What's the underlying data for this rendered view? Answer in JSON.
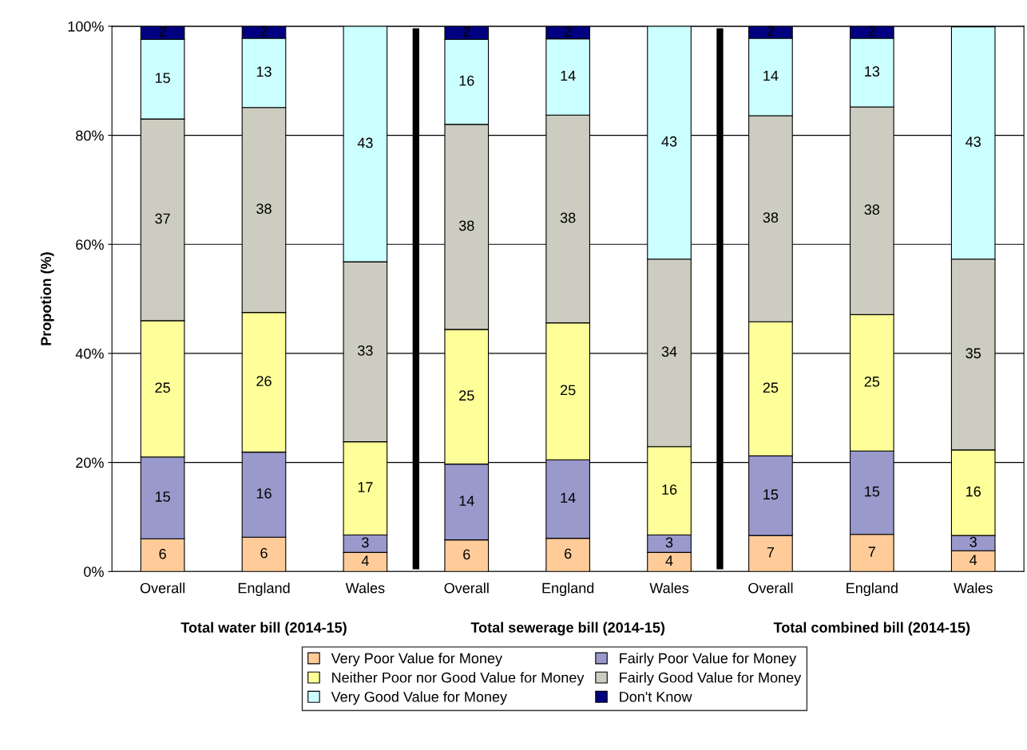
{
  "chart_data": {
    "type": "bar",
    "stacked": true,
    "ylabel": "Propotion (%)",
    "categories": [
      "Overall",
      "England",
      "Wales",
      "Overall",
      "England",
      "Wales",
      "Overall",
      "England",
      "Wales"
    ],
    "series": [
      {
        "name": "Very Poor Value for Money",
        "color": "#ffcc99",
        "values": [
          6.0,
          6.3,
          3.5,
          5.8,
          6.1,
          3.5,
          6.6,
          6.8,
          3.8
        ],
        "value_labels": [
          "6",
          "6",
          "4",
          "6",
          "6",
          "4",
          "7",
          "7",
          "4"
        ]
      },
      {
        "name": "Fairly Poor Value for Money",
        "color": "#9999cc",
        "values": [
          15.0,
          15.6,
          3.2,
          13.9,
          14.4,
          3.2,
          14.6,
          15.3,
          2.8
        ],
        "value_labels": [
          "15",
          "16",
          "3",
          "14",
          "14",
          "3",
          "15",
          "15",
          "3"
        ]
      },
      {
        "name": "Neither Poor nor Good Value for Money",
        "color": "#ffff99",
        "values": [
          25.0,
          25.6,
          17.1,
          24.7,
          25.1,
          16.2,
          24.6,
          25.0,
          15.7
        ],
        "value_labels": [
          "25",
          "26",
          "17",
          "25",
          "25",
          "16",
          "25",
          "25",
          "16"
        ]
      },
      {
        "name": "Fairly Good Value for Money",
        "color": "#ccccc0",
        "values": [
          37.0,
          37.6,
          33.0,
          37.6,
          38.1,
          34.4,
          37.8,
          38.1,
          35.0
        ],
        "value_labels": [
          "37",
          "38",
          "33",
          "38",
          "38",
          "34",
          "38",
          "38",
          "35"
        ]
      },
      {
        "name": "Very Good Value for Money",
        "color": "#ccffff",
        "values": [
          14.6,
          12.7,
          43.2,
          15.6,
          14.0,
          42.7,
          14.2,
          12.6,
          42.6
        ],
        "value_labels": [
          "15",
          "13",
          "43",
          "16",
          "14",
          "43",
          "14",
          "13",
          "43"
        ]
      },
      {
        "name": "Don't Know",
        "color": "#000080",
        "values": [
          2.4,
          2.2,
          null,
          2.4,
          2.3,
          null,
          2.2,
          2.2,
          null
        ],
        "value_labels": [
          "2",
          "2",
          null,
          "2",
          "2",
          null,
          "2",
          "2",
          null
        ]
      }
    ],
    "ylim": [
      0,
      100
    ],
    "yticks": [
      {
        "value": 0,
        "label": "0%"
      },
      {
        "value": 20,
        "label": "20%"
      },
      {
        "value": 40,
        "label": "40%"
      },
      {
        "value": 60,
        "label": "60%"
      },
      {
        "value": 80,
        "label": "80%"
      },
      {
        "value": 100,
        "label": "100%"
      }
    ],
    "grid": "y",
    "legend": "bottom",
    "annotations": [
      "Total water bill (2014-15)",
      "Total sewerage bill (2014-15)",
      "Total combined bill (2014-15)"
    ]
  }
}
